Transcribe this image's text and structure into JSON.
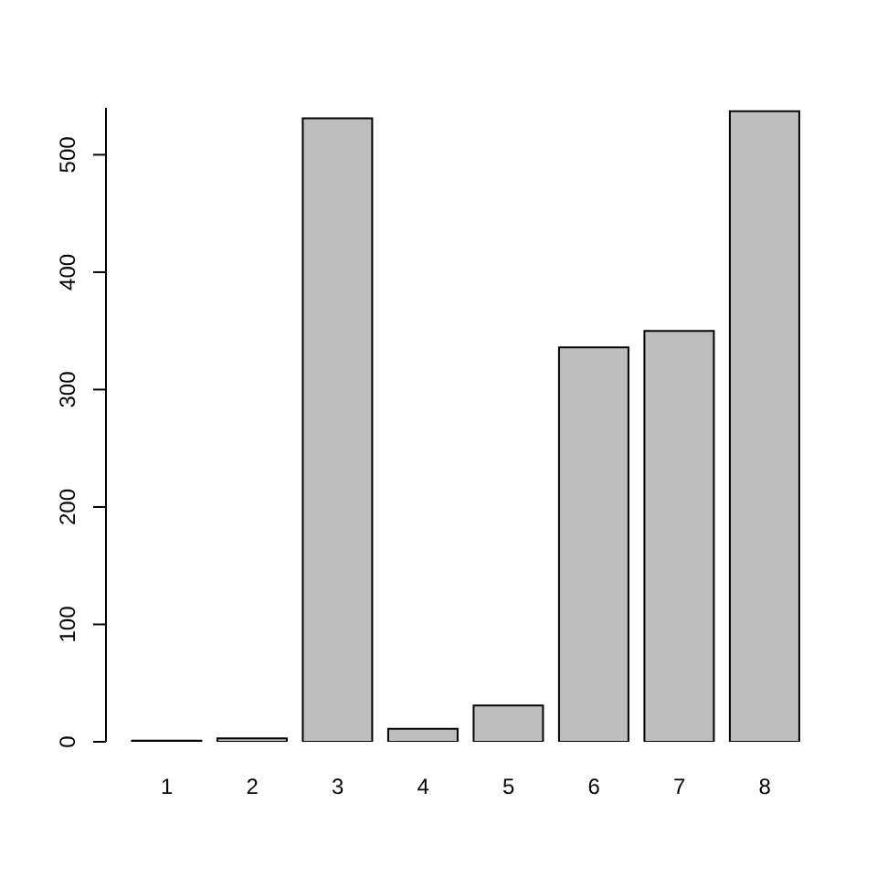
{
  "chart_data": {
    "type": "bar",
    "categories": [
      "1",
      "2",
      "3",
      "4",
      "5",
      "6",
      "7",
      "8"
    ],
    "values": [
      1,
      3,
      531,
      11,
      31,
      336,
      350,
      537
    ],
    "color": "#bebebe",
    "ylim": [
      0,
      540
    ],
    "yticks": [
      0,
      100,
      200,
      300,
      400,
      500
    ],
    "grid": false,
    "legend": false
  }
}
